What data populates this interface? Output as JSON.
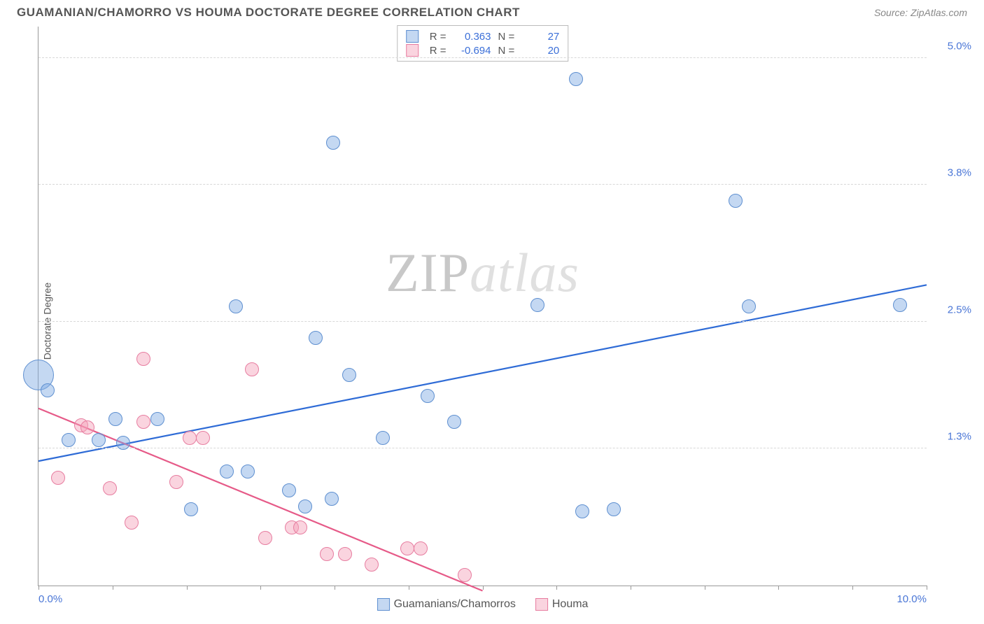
{
  "header": {
    "title": "GUAMANIAN/CHAMORRO VS HOUMA DOCTORATE DEGREE CORRELATION CHART",
    "source_prefix": "Source: ",
    "source": "ZipAtlas.com"
  },
  "chart": {
    "type": "scatter",
    "ylabel": "Doctorate Degree",
    "watermark": "ZIPatlas",
    "background_color": "#ffffff",
    "grid_color": "#d8d8d8",
    "axis_color": "#999999",
    "xlim": [
      0.0,
      10.0
    ],
    "ylim": [
      0.0,
      5.3
    ],
    "xticks": {
      "positions": [
        0.0,
        0.833,
        1.667,
        2.5,
        3.333,
        4.167,
        5.0,
        5.833,
        6.667,
        7.5,
        8.333,
        9.167,
        10.0
      ],
      "labels_shown": {
        "0.0": "0.0%",
        "10.0": "10.0%"
      }
    },
    "yticks": {
      "positions": [
        1.3,
        2.5,
        3.8,
        5.0
      ],
      "labels": [
        "1.3%",
        "2.5%",
        "3.8%",
        "5.0%"
      ]
    },
    "series": [
      {
        "id": "guamanians",
        "label": "Guamanians/Chamorros",
        "fill": "rgba(125,168,227,0.45)",
        "stroke": "#5e8fd0",
        "marker_r": 10,
        "line_color": "#2e6bd6",
        "line_width": 2.2,
        "trend": {
          "x1": 0.0,
          "y1": 1.18,
          "x2": 10.0,
          "y2": 2.85
        },
        "points": [
          {
            "x": 0.0,
            "y": 2.0,
            "r": 22
          },
          {
            "x": 0.1,
            "y": 1.85
          },
          {
            "x": 0.34,
            "y": 1.38
          },
          {
            "x": 0.68,
            "y": 1.38
          },
          {
            "x": 0.87,
            "y": 1.58
          },
          {
            "x": 0.95,
            "y": 1.35
          },
          {
            "x": 1.34,
            "y": 1.58
          },
          {
            "x": 1.72,
            "y": 0.72
          },
          {
            "x": 2.12,
            "y": 1.08
          },
          {
            "x": 2.22,
            "y": 2.65
          },
          {
            "x": 2.36,
            "y": 1.08
          },
          {
            "x": 2.82,
            "y": 0.9
          },
          {
            "x": 3.0,
            "y": 0.75
          },
          {
            "x": 3.12,
            "y": 2.35
          },
          {
            "x": 3.3,
            "y": 0.82
          },
          {
            "x": 3.32,
            "y": 4.2
          },
          {
            "x": 3.5,
            "y": 2.0
          },
          {
            "x": 3.88,
            "y": 1.4
          },
          {
            "x": 4.38,
            "y": 1.8
          },
          {
            "x": 4.68,
            "y": 1.55
          },
          {
            "x": 5.62,
            "y": 2.66
          },
          {
            "x": 6.05,
            "y": 4.8
          },
          {
            "x": 6.12,
            "y": 0.7
          },
          {
            "x": 6.48,
            "y": 0.72
          },
          {
            "x": 7.85,
            "y": 3.65
          },
          {
            "x": 8.0,
            "y": 2.65
          },
          {
            "x": 9.7,
            "y": 2.66
          }
        ]
      },
      {
        "id": "houma",
        "label": "Houma",
        "fill": "rgba(244,160,185,0.45)",
        "stroke": "#e77da0",
        "marker_r": 10,
        "line_color": "#e65a88",
        "line_width": 2.2,
        "trend": {
          "x1": 0.0,
          "y1": 1.68,
          "x2": 5.0,
          "y2": -0.05
        },
        "points": [
          {
            "x": 0.22,
            "y": 1.02
          },
          {
            "x": 0.48,
            "y": 1.52
          },
          {
            "x": 0.55,
            "y": 1.5
          },
          {
            "x": 0.8,
            "y": 0.92
          },
          {
            "x": 1.05,
            "y": 0.6
          },
          {
            "x": 1.18,
            "y": 2.15
          },
          {
            "x": 1.18,
            "y": 1.55
          },
          {
            "x": 1.55,
            "y": 0.98
          },
          {
            "x": 1.7,
            "y": 1.4
          },
          {
            "x": 1.85,
            "y": 1.4
          },
          {
            "x": 2.4,
            "y": 2.05
          },
          {
            "x": 2.55,
            "y": 0.45
          },
          {
            "x": 2.85,
            "y": 0.55
          },
          {
            "x": 2.95,
            "y": 0.55
          },
          {
            "x": 3.25,
            "y": 0.3
          },
          {
            "x": 3.45,
            "y": 0.3
          },
          {
            "x": 3.75,
            "y": 0.2
          },
          {
            "x": 4.15,
            "y": 0.35
          },
          {
            "x": 4.3,
            "y": 0.35
          },
          {
            "x": 4.8,
            "y": 0.1
          }
        ]
      }
    ],
    "stats": [
      {
        "series": "guamanians",
        "R_label": "R =",
        "R": "0.363",
        "N_label": "N =",
        "N": "27"
      },
      {
        "series": "houma",
        "R_label": "R =",
        "R": "-0.694",
        "N_label": "N =",
        "N": "20"
      }
    ]
  }
}
